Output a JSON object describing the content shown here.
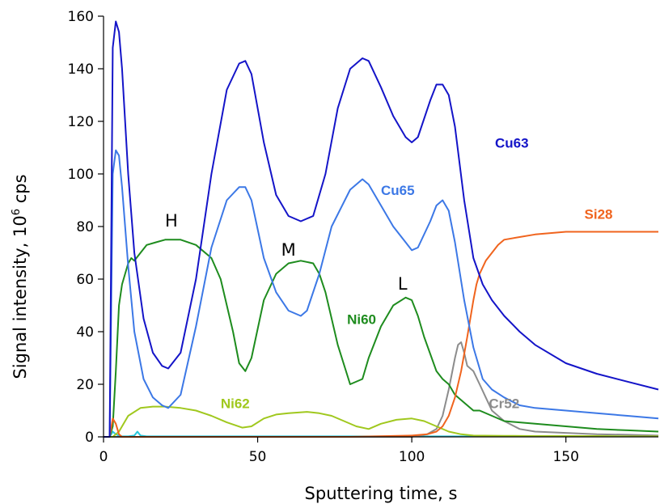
{
  "chart_data": {
    "type": "line",
    "title": "",
    "xlabel": "Sputtering time, s",
    "ylabel": "Signal intensity, 10",
    "ylabel_sup": "6",
    "ylabel_tail": " cps",
    "xlim": [
      0,
      180
    ],
    "ylim": [
      0,
      160
    ],
    "x_ticks": [
      0,
      50,
      100,
      150
    ],
    "y_ticks": [
      0,
      20,
      40,
      60,
      80,
      100,
      120,
      140,
      160
    ],
    "grid": false,
    "legend": "none",
    "peak_labels": [
      {
        "text": "H",
        "x": 22,
        "y": 80
      },
      {
        "text": "M",
        "x": 60,
        "y": 69
      },
      {
        "text": "L",
        "x": 97,
        "y": 56
      }
    ],
    "series": [
      {
        "name": "Cu63",
        "color": "#1414c8",
        "label": {
          "x": 127,
          "y": 110
        },
        "x": [
          0,
          2,
          3,
          4,
          5,
          6,
          8,
          10,
          13,
          16,
          19,
          21,
          25,
          30,
          35,
          40,
          44,
          46,
          48,
          52,
          56,
          60,
          64,
          68,
          72,
          76,
          80,
          84,
          86,
          90,
          94,
          98,
          100,
          102,
          106,
          108,
          110,
          112,
          114,
          117,
          120,
          123,
          126,
          130,
          135,
          140,
          150,
          160,
          170,
          180
        ],
        "values": [
          0,
          0,
          148,
          158,
          154,
          140,
          100,
          70,
          45,
          32,
          27,
          26,
          32,
          60,
          100,
          132,
          142,
          143,
          138,
          112,
          92,
          84,
          82,
          84,
          100,
          125,
          140,
          144,
          143,
          133,
          122,
          114,
          112,
          114,
          128,
          134,
          134,
          130,
          118,
          90,
          68,
          58,
          52,
          46,
          40,
          35,
          28,
          24,
          21,
          18
        ]
      },
      {
        "name": "Cu65",
        "color": "#3c78e6",
        "label": {
          "x": 90,
          "y": 92
        },
        "x": [
          0,
          2,
          3,
          4,
          5,
          6,
          8,
          10,
          13,
          16,
          19,
          21,
          25,
          30,
          35,
          40,
          44,
          46,
          48,
          52,
          56,
          60,
          64,
          66,
          70,
          74,
          80,
          84,
          86,
          90,
          94,
          98,
          100,
          102,
          106,
          108,
          110,
          112,
          114,
          117,
          120,
          123,
          126,
          130,
          135,
          140,
          150,
          160,
          170,
          180
        ],
        "values": [
          0,
          0,
          100,
          109,
          107,
          95,
          65,
          40,
          22,
          15,
          12,
          11,
          16,
          42,
          72,
          90,
          95,
          95,
          90,
          68,
          55,
          48,
          46,
          48,
          62,
          80,
          94,
          98,
          96,
          88,
          80,
          74,
          71,
          72,
          82,
          88,
          90,
          86,
          74,
          52,
          34,
          22,
          18,
          15,
          12,
          11,
          10,
          9,
          8,
          7
        ]
      },
      {
        "name": "Ni60",
        "color": "#1e8c1e",
        "label": {
          "x": 79,
          "y": 43
        },
        "x": [
          0,
          2,
          3,
          4,
          5,
          6,
          7,
          8,
          9,
          10,
          12,
          14,
          17,
          20,
          25,
          30,
          35,
          38,
          42,
          44,
          46,
          48,
          52,
          56,
          60,
          64,
          68,
          70,
          72,
          76,
          80,
          84,
          86,
          90,
          94,
          98,
          100,
          102,
          104,
          108,
          110,
          112,
          114,
          116,
          118,
          120,
          122,
          126,
          130,
          140,
          150,
          160,
          170,
          180
        ],
        "values": [
          0,
          0,
          4,
          25,
          50,
          58,
          62,
          66,
          68,
          67,
          70,
          73,
          74,
          75,
          75,
          73,
          68,
          60,
          40,
          28,
          25,
          30,
          52,
          62,
          66,
          67,
          66,
          62,
          55,
          35,
          20,
          22,
          30,
          42,
          50,
          53,
          52,
          46,
          38,
          25,
          22,
          20,
          16,
          14,
          12,
          10,
          10,
          8,
          6,
          5,
          4,
          3,
          2.5,
          2
        ]
      },
      {
        "name": "Ni62",
        "color": "#a0c81e",
        "label": {
          "x": 38,
          "y": 11
        },
        "x": [
          0,
          3,
          5,
          8,
          12,
          16,
          20,
          25,
          30,
          35,
          40,
          45,
          48,
          52,
          56,
          60,
          66,
          70,
          74,
          78,
          82,
          86,
          90,
          95,
          100,
          104,
          108,
          112,
          116,
          120,
          130,
          140,
          150,
          160,
          170,
          180
        ],
        "values": [
          0,
          0,
          2,
          8,
          11,
          11.5,
          11.5,
          11,
          10,
          8,
          5.5,
          3.5,
          4,
          7,
          8.5,
          9,
          9.5,
          9,
          8,
          6,
          4,
          3,
          5,
          6.5,
          7,
          6,
          4,
          2,
          1,
          0.5,
          0.4,
          0.3,
          0.3,
          0.3,
          0.2,
          0.2
        ]
      },
      {
        "name": "Si28",
        "color": "#f0641e",
        "label": {
          "x": 156,
          "y": 83
        },
        "x": [
          0,
          2,
          3,
          4,
          5,
          6,
          10,
          20,
          50,
          80,
          100,
          105,
          108,
          110,
          112,
          114,
          116,
          118,
          120,
          121,
          122,
          124,
          126,
          128,
          130,
          135,
          140,
          150,
          160,
          170,
          180
        ],
        "values": [
          0,
          0,
          7,
          5,
          1,
          0,
          0,
          0,
          0,
          0,
          0.5,
          1,
          2,
          4,
          8,
          15,
          25,
          38,
          52,
          58,
          62,
          67,
          70,
          73,
          75,
          76,
          77,
          78,
          78,
          78,
          78
        ]
      },
      {
        "name": "Cr52",
        "color": "#8c8c8c",
        "label": {
          "x": 125,
          "y": 11
        },
        "x": [
          0,
          100,
          105,
          108,
          110,
          112,
          114,
          115,
          116,
          117,
          118,
          120,
          122,
          124,
          126,
          130,
          135,
          140,
          150,
          160,
          170,
          180
        ],
        "values": [
          0,
          0,
          1,
          3,
          8,
          18,
          30,
          35,
          36,
          32,
          27,
          25,
          20,
          15,
          10,
          6,
          3,
          2,
          1.5,
          1,
          0.8,
          0.5
        ]
      },
      {
        "name": "",
        "color": "#28c8dc",
        "x": [
          0,
          2,
          3,
          4,
          5,
          6,
          8,
          10,
          11,
          12,
          14,
          20,
          50,
          100,
          150,
          180
        ],
        "values": [
          0,
          0,
          2,
          1,
          0.5,
          0.2,
          0.2,
          0.5,
          2,
          0.5,
          0.2,
          0.2,
          0.2,
          0.2,
          0.2,
          0.2
        ]
      }
    ]
  }
}
